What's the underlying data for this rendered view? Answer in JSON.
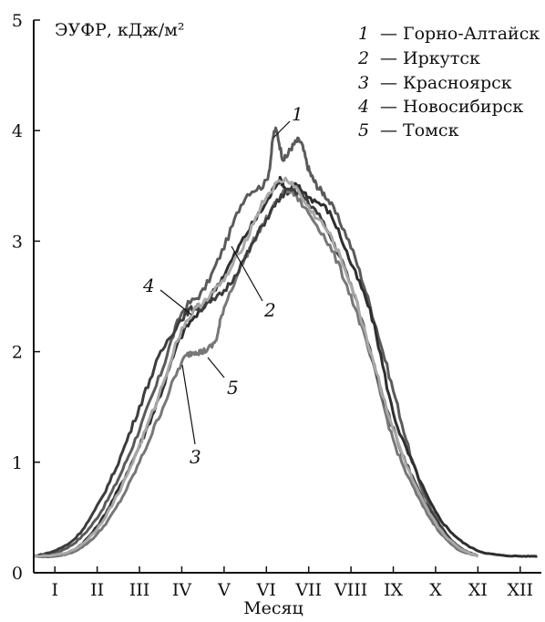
{
  "chart_data": {
    "type": "line",
    "title": "",
    "ylabel": "ЭУФР, кДж/м²",
    "xlabel": "Месяц",
    "ylim": [
      0,
      5
    ],
    "yticks": [
      0,
      1,
      2,
      3,
      4,
      5
    ],
    "xlim": [
      0.5,
      12.5
    ],
    "xtick_positions": [
      1,
      2,
      3,
      4,
      5,
      6,
      7,
      8,
      9,
      10,
      11,
      12
    ],
    "xtick_labels": [
      "I",
      "II",
      "III",
      "IV",
      "V",
      "VI",
      "VII",
      "VIII",
      "IX",
      "X",
      "XI",
      "XII"
    ],
    "grid": false,
    "legend": {
      "placement": "top-right",
      "entries": [
        {
          "num": "1",
          "label": "— Горно-Алтайск"
        },
        {
          "num": "2",
          "label": "— Иркутск"
        },
        {
          "num": "3",
          "label": "— Красноярск"
        },
        {
          "num": "4",
          "label": "— Новосибирск"
        },
        {
          "num": "5",
          "label": "— Томск"
        }
      ]
    },
    "annotations": [
      "1",
      "2",
      "3",
      "4",
      "5"
    ],
    "series": [
      {
        "id": "1",
        "color": "#5a5a5a",
        "x": [
          0.5,
          1.0,
          1.5,
          2.0,
          2.5,
          3.0,
          3.5,
          4.0,
          4.5,
          5.0,
          5.5,
          6.0,
          6.2,
          6.4,
          6.6,
          6.8,
          7.0,
          7.2,
          7.5,
          8.0,
          8.5,
          9.0,
          9.5,
          10.0,
          10.5,
          11.0
        ],
        "y": [
          0.15,
          0.18,
          0.28,
          0.5,
          0.85,
          1.3,
          1.8,
          2.35,
          2.55,
          2.95,
          3.4,
          3.55,
          4.0,
          3.75,
          3.85,
          3.9,
          3.65,
          3.5,
          3.35,
          2.95,
          2.35,
          1.65,
          0.95,
          0.5,
          0.25,
          0.15
        ]
      },
      {
        "id": "2",
        "color": "#2e2e2e",
        "x": [
          0.5,
          1.0,
          1.5,
          2.0,
          2.5,
          3.0,
          3.5,
          4.0,
          4.5,
          5.0,
          5.5,
          6.0,
          6.3,
          6.5,
          6.7,
          7.0,
          7.5,
          8.0,
          8.5,
          9.0,
          9.5,
          10.0,
          10.5,
          11.0,
          11.5,
          12.0,
          12.4
        ],
        "y": [
          0.15,
          0.15,
          0.22,
          0.42,
          0.75,
          1.15,
          1.62,
          2.15,
          2.4,
          2.7,
          3.05,
          3.35,
          3.55,
          3.45,
          3.5,
          3.4,
          3.25,
          2.8,
          2.3,
          1.45,
          0.95,
          0.55,
          0.32,
          0.2,
          0.16,
          0.15,
          0.15
        ]
      },
      {
        "id": "3",
        "color": "#777777",
        "x": [
          0.5,
          1.0,
          1.5,
          2.0,
          2.5,
          3.0,
          3.5,
          4.0,
          4.3,
          4.5,
          4.8,
          5.0,
          5.5,
          6.0,
          6.5,
          7.0,
          7.5,
          8.0,
          8.5,
          9.0,
          9.5,
          10.0,
          10.5,
          11.0
        ],
        "y": [
          0.15,
          0.15,
          0.2,
          0.35,
          0.62,
          1.0,
          1.45,
          1.9,
          2.0,
          2.0,
          2.1,
          2.4,
          2.85,
          3.2,
          3.45,
          3.25,
          2.95,
          2.5,
          1.9,
          1.2,
          0.75,
          0.42,
          0.22,
          0.15
        ]
      },
      {
        "id": "4",
        "color": "#3c3c3c",
        "x": [
          0.5,
          1.0,
          1.5,
          2.0,
          2.5,
          3.0,
          3.5,
          4.0,
          4.3,
          4.5,
          5.0,
          5.5,
          6.0,
          6.5,
          7.0,
          7.5,
          8.0,
          8.5,
          9.0,
          9.5,
          10.0,
          10.5,
          11.0
        ],
        "y": [
          0.15,
          0.2,
          0.32,
          0.6,
          1.0,
          1.5,
          1.98,
          2.3,
          2.4,
          2.4,
          2.55,
          2.85,
          3.2,
          3.45,
          3.35,
          3.05,
          2.6,
          1.95,
          1.3,
          0.82,
          0.48,
          0.25,
          0.15
        ]
      },
      {
        "id": "5",
        "color": "#a8a8a8",
        "x": [
          0.5,
          1.0,
          1.5,
          2.0,
          2.5,
          3.0,
          3.5,
          4.0,
          4.5,
          5.0,
          5.5,
          6.0,
          6.5,
          7.0,
          7.5,
          8.0,
          8.5,
          9.0,
          9.5,
          10.0,
          10.5,
          11.0
        ],
        "y": [
          0.15,
          0.16,
          0.22,
          0.4,
          0.72,
          1.15,
          1.65,
          2.2,
          2.45,
          2.65,
          3.0,
          3.4,
          3.55,
          3.3,
          3.05,
          2.6,
          1.95,
          1.3,
          0.8,
          0.45,
          0.24,
          0.15
        ]
      }
    ]
  }
}
